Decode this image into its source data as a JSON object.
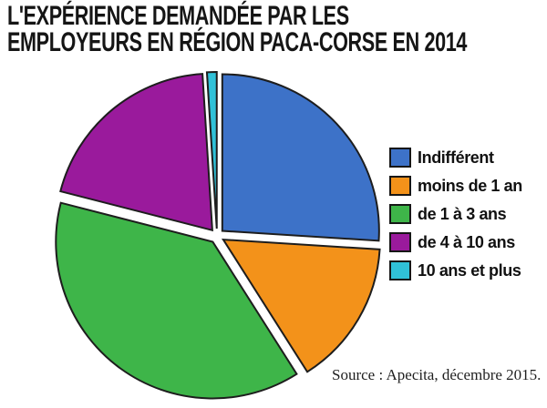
{
  "title": {
    "line1": "L'EXPÉRIENCE DEMANDÉE PAR LES",
    "line2": "EMPLOYEURS EN RÉGION PACA-CORSE EN 2014"
  },
  "chart_data": {
    "type": "pie",
    "title": "L'expérience demandée par les employeurs en région PACA-Corse en 2014",
    "labels": [
      "Indifférent",
      "moins de 1 an",
      "de 1 à 3 ans",
      "de 4 à 10 ans",
      "10 ans et plus"
    ],
    "values": [
      26,
      15,
      38,
      20,
      1
    ],
    "unit": "percent (estimated from slice angles; no data labels shown on chart)",
    "colors": [
      "#3d72c8",
      "#f3921a",
      "#3eb549",
      "#9a1a9c",
      "#30c1d8"
    ],
    "outline_color": "#1d1d1d",
    "start_angle_deg": 0,
    "direction": "clockwise",
    "exploded": true,
    "legend_position": "right",
    "grid": false
  },
  "source": {
    "text": "Source : Apecita, décembre 2015."
  }
}
